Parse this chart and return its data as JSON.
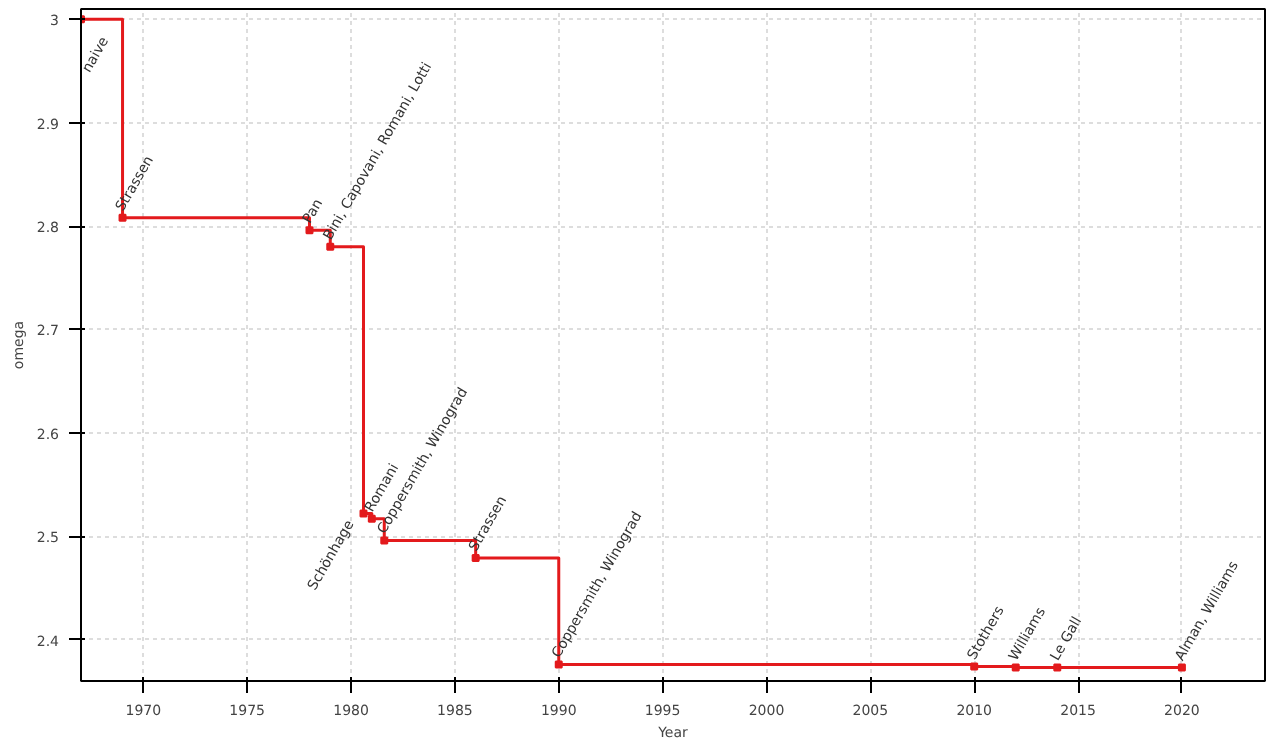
{
  "chart_data": {
    "type": "step",
    "xlabel": "Year",
    "ylabel": "omega",
    "x": [
      1967,
      1969,
      1978,
      1979,
      1980.6,
      1981,
      1981.6,
      1986,
      1990,
      2010,
      2012,
      2014,
      2020
    ],
    "series": [
      {
        "color": "#e31a1c",
        "values": [
          3,
          2.808,
          2.796,
          2.78,
          2.522,
          2.517,
          2.496,
          2.479,
          2.376,
          2.374,
          2.373,
          2.373,
          2.373
        ]
      }
    ],
    "annotations": [
      {
        "text": "naive",
        "x": 1967,
        "y": 3
      },
      {
        "text": "Strassen",
        "x": 1969,
        "y": 2.808
      },
      {
        "text": "Pan",
        "x": 1978,
        "y": 2.796
      },
      {
        "text": "Bini, Capovani, Romani, Lotti",
        "x": 1979,
        "y": 2.78
      },
      {
        "text": "Schönhage",
        "x": 1980.6,
        "y": 2.522
      },
      {
        "text": "Romani",
        "x": 1981,
        "y": 2.517
      },
      {
        "text": "Coppersmith, Winograd",
        "x": 1981.6,
        "y": 2.496
      },
      {
        "text": "Strassen",
        "x": 1986,
        "y": 2.479
      },
      {
        "text": "Coppersmith, Winograd",
        "x": 1990,
        "y": 2.376
      },
      {
        "text": "Stothers",
        "x": 2010,
        "y": 2.374
      },
      {
        "text": "Williams",
        "x": 2012,
        "y": 2.373
      },
      {
        "text": "Le Gall",
        "x": 2014,
        "y": 2.373
      },
      {
        "text": "Alman, Williams",
        "x": 2020,
        "y": 2.373
      }
    ],
    "xlim": [
      1967,
      2024
    ],
    "ylim": [
      2.36,
      3.01
    ],
    "xticks": [
      1970,
      1975,
      1980,
      1985,
      1990,
      1995,
      2000,
      2005,
      2010,
      2015,
      2020
    ],
    "yticks": [
      2.4,
      2.5,
      2.6,
      2.7,
      2.8,
      2.9,
      3
    ],
    "grid": true,
    "marker": "square",
    "line_style": "solid"
  }
}
